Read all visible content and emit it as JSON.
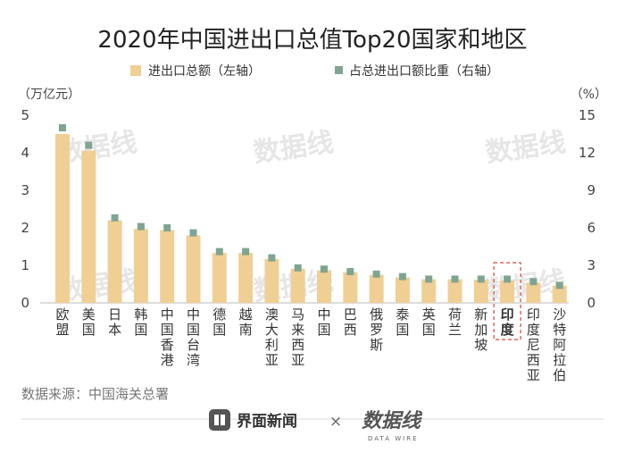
{
  "chart_data": {
    "type": "bar",
    "title": "2020年中国进出口总值Top20国家和地区",
    "legend": [
      {
        "label": "进出口总额（左轴）",
        "color": "#f0cf94",
        "shape": "bar"
      },
      {
        "label": "占总进出口额比重（右轴）",
        "color": "#7fa591",
        "shape": "marker"
      }
    ],
    "legend_position": "top",
    "y_left": {
      "unit": "（万亿元）",
      "range": [
        0,
        5
      ],
      "ticks": [
        "0",
        "1",
        "2",
        "3",
        "4",
        "5"
      ]
    },
    "y_right": {
      "unit": "（%）",
      "range": [
        0,
        15
      ],
      "ticks": [
        "0",
        "3",
        "6",
        "9",
        "12",
        "15"
      ]
    },
    "grid": false,
    "categories": [
      "欧盟",
      "美国",
      "日本",
      "韩国",
      "中国香港",
      "中国台湾",
      "德国",
      "越南",
      "澳大利亚",
      "马来西亚",
      "中国",
      "巴西",
      "俄罗斯",
      "泰国",
      "英国",
      "荷兰",
      "新加坡",
      "印度",
      "印度尼西亚",
      "沙特阿拉伯"
    ],
    "highlight_category": "印度",
    "series": [
      {
        "name": "进出口总额（左轴）",
        "axis": "left",
        "type": "bar",
        "color": "#f0cf94",
        "values": [
          4.5,
          4.06,
          2.2,
          1.97,
          1.94,
          1.8,
          1.33,
          1.33,
          1.17,
          0.91,
          0.87,
          0.82,
          0.75,
          0.68,
          0.63,
          0.63,
          0.62,
          0.6,
          0.54,
          0.46
        ]
      },
      {
        "name": "占总进出口额比重（右轴）",
        "axis": "right",
        "type": "marker",
        "color": "#7fa591",
        "values": [
          14.0,
          12.6,
          6.8,
          6.1,
          6.0,
          5.6,
          4.1,
          4.1,
          3.6,
          2.8,
          2.7,
          2.5,
          2.3,
          2.1,
          1.9,
          1.9,
          1.9,
          1.9,
          1.7,
          1.4
        ]
      }
    ]
  },
  "footer": {
    "source": "数据来源：中国海关总署",
    "brand_name": "界面新闻",
    "times": "×",
    "brand2_name": "数据线",
    "brand2_sub": "DATA WIRE"
  },
  "watermark": "数据线"
}
